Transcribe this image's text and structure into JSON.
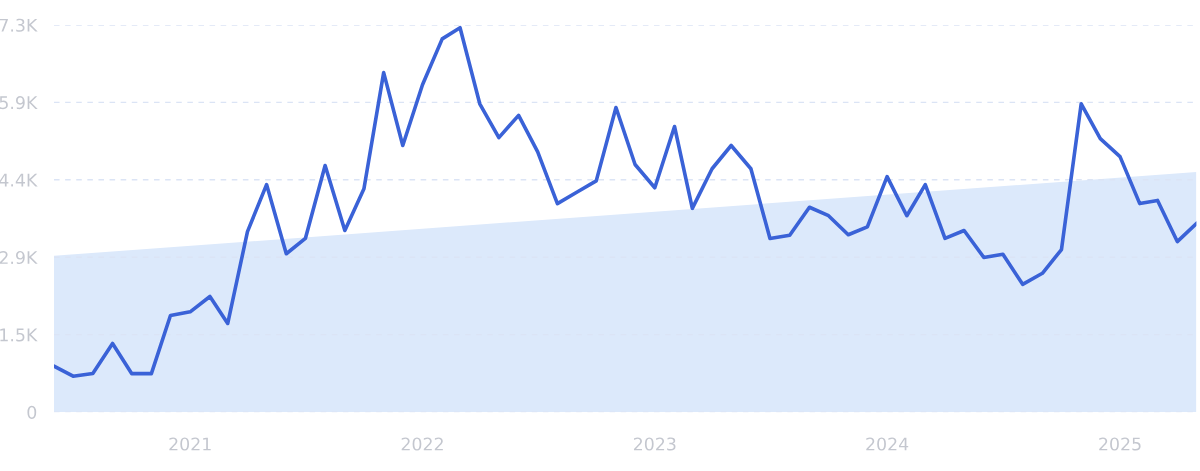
{
  "chart_data": {
    "type": "line",
    "x": [
      "2020-06",
      "2020-07",
      "2020-08",
      "2020-09",
      "2020-10",
      "2020-11",
      "2020-12",
      "2021-01",
      "2021-02",
      "2021-03",
      "2021-04",
      "2021-05",
      "2021-06",
      "2021-07",
      "2021-08",
      "2021-09",
      "2021-10",
      "2021-11",
      "2021-12",
      "2022-01",
      "2022-02",
      "2022-03",
      "2022-04",
      "2022-05",
      "2022-06",
      "2022-07",
      "2022-08",
      "2022-09",
      "2022-10",
      "2022-11",
      "2022-12",
      "2023-01",
      "2023-02",
      "2023-03",
      "2023-04",
      "2023-05",
      "2023-06",
      "2023-07",
      "2023-08",
      "2023-09",
      "2023-10",
      "2023-11",
      "2023-12",
      "2024-01",
      "2024-02",
      "2024-03",
      "2024-04",
      "2024-05",
      "2024-06",
      "2024-07",
      "2024-08",
      "2024-09",
      "2024-10",
      "2024-11",
      "2024-12",
      "2025-01",
      "2025-02",
      "2025-03",
      "2025-04",
      "2025-05"
    ],
    "series": [
      {
        "type": "area",
        "color": "#dce9fb",
        "x": [
          "2020-06",
          "2025-05"
        ],
        "values": [
          2960,
          4550
        ]
      },
      {
        "color": "#3a62d7",
        "values": [
          870,
          680,
          730,
          1300,
          730,
          730,
          1830,
          1900,
          2190,
          1680,
          3420,
          4310,
          3000,
          3290,
          4670,
          3440,
          4230,
          6430,
          5050,
          6200,
          7070,
          7280,
          5840,
          5200,
          5620,
          4930,
          3950,
          4170,
          4380,
          5770,
          4690,
          4250,
          5410,
          3860,
          4610,
          5050,
          4610,
          3290,
          3350,
          3880,
          3720,
          3360,
          3510,
          4460,
          3720,
          4310,
          3290,
          3440,
          2930,
          2990,
          2420,
          2630,
          3080,
          5840,
          5180,
          4840,
          3950,
          4010,
          3230,
          3570
        ]
      }
    ],
    "xlim": [
      "2020-06",
      "2025-05"
    ],
    "xticks": [
      {
        "value": "2021-01",
        "label": "2021"
      },
      {
        "value": "2022-01",
        "label": "2022"
      },
      {
        "value": "2023-01",
        "label": "2023"
      },
      {
        "value": "2024-01",
        "label": "2024"
      },
      {
        "value": "2025-01",
        "label": "2025"
      }
    ],
    "ylim": [
      0,
      7333
    ],
    "yticks": [
      0,
      {
        "value": 1467,
        "label": "1.5K"
      },
      {
        "value": 2933,
        "label": "2.9K"
      },
      {
        "value": 4400,
        "label": "4.4K"
      },
      {
        "value": 5867,
        "label": "5.9K"
      },
      {
        "value": 7333,
        "label": "7.3K"
      }
    ],
    "grid": "y",
    "line_style": "solid"
  }
}
